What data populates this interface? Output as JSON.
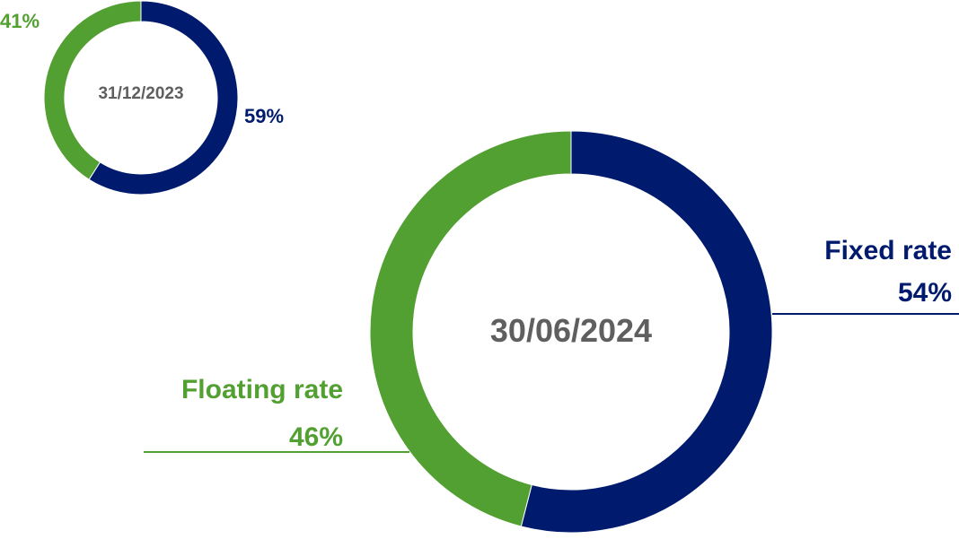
{
  "chart_data": [
    {
      "type": "pie",
      "title": "31/12/2023",
      "slices": [
        {
          "label": "Fixed rate",
          "value": 59,
          "value_label": "59%",
          "color": "#001a6e"
        },
        {
          "label": "Floating rate",
          "value": 41,
          "value_label": "41%",
          "color": "#53a032"
        }
      ],
      "center_label": "31/12/2023",
      "legend": "none"
    },
    {
      "type": "pie",
      "title": "30/06/2024",
      "slices": [
        {
          "label": "Fixed rate",
          "value": 54,
          "value_label": "54%",
          "color": "#001a6e"
        },
        {
          "label": "Floating rate",
          "value": 46,
          "value_label": "46%",
          "color": "#53a032"
        }
      ],
      "center_label": "30/06/2024",
      "legend": "none"
    }
  ],
  "colors": {
    "fixed": "#001a6e",
    "floating": "#53a032",
    "center_text": "#5f5f5f"
  }
}
